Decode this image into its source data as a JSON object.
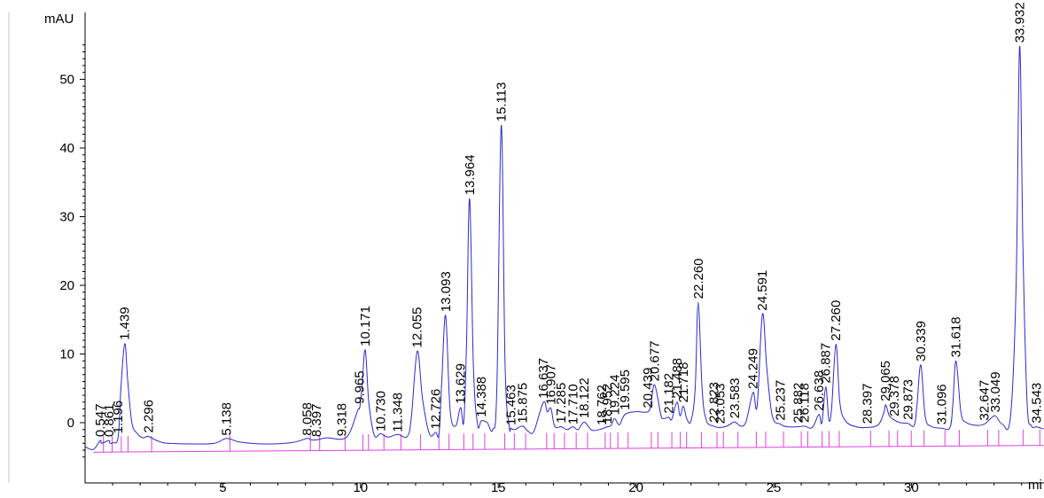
{
  "chart_data": {
    "type": "line",
    "title": "",
    "ylabel": "mAU",
    "xlabel": "mi",
    "xlim": [
      0,
      34.8
    ],
    "ylim": [
      -7.5,
      59
    ],
    "x_ticks": [
      5,
      10,
      15,
      20,
      25,
      30
    ],
    "y_ticks": [
      0,
      10,
      20,
      30,
      40,
      50
    ],
    "grid": false,
    "colors": {
      "trace": "#2a2ad0",
      "baseline": "#e040e0",
      "axis": "#000000"
    },
    "baseline": {
      "x": [
        0.3,
        34.8
      ],
      "y": [
        -4.3,
        -3.3
      ]
    },
    "peaks": [
      {
        "label": "0.547",
        "x": 0.547,
        "y": -2.6
      },
      {
        "label": "0.861",
        "x": 0.861,
        "y": -2.6
      },
      {
        "label": "1.196",
        "x": 1.196,
        "y": -2.1
      },
      {
        "label": "1.439",
        "x": 1.439,
        "y": 11.5
      },
      {
        "label": "2.296",
        "x": 2.296,
        "y": -2.0
      },
      {
        "label": "5.138",
        "x": 5.138,
        "y": -2.4
      },
      {
        "label": "8.058",
        "x": 8.058,
        "y": -2.4
      },
      {
        "label": "8.397",
        "x": 8.397,
        "y": -2.6
      },
      {
        "label": "9.318",
        "x": 9.318,
        "y": -2.5
      },
      {
        "label": "9.965",
        "x": 9.965,
        "y": 2.2
      },
      {
        "label": "10.171",
        "x": 10.171,
        "y": 10.6
      },
      {
        "label": "10.730",
        "x": 10.73,
        "y": -1.8
      },
      {
        "label": "11.348",
        "x": 11.348,
        "y": -1.9
      },
      {
        "label": "12.055",
        "x": 12.055,
        "y": 10.4
      },
      {
        "label": "12.726",
        "x": 12.726,
        "y": -1.5
      },
      {
        "label": "13.093",
        "x": 13.093,
        "y": 15.6
      },
      {
        "label": "13.629",
        "x": 13.629,
        "y": 2.2
      },
      {
        "label": "13.964",
        "x": 13.964,
        "y": 32.6
      },
      {
        "label": "14.388",
        "x": 14.388,
        "y": 0.3
      },
      {
        "label": "15.113",
        "x": 15.113,
        "y": 43.3
      },
      {
        "label": "15.463",
        "x": 15.463,
        "y": -0.9
      },
      {
        "label": "15.875",
        "x": 15.875,
        "y": -0.6
      },
      {
        "label": "16.637",
        "x": 16.637,
        "y": 3.0
      },
      {
        "label": "16.907",
        "x": 16.907,
        "y": 2.1
      },
      {
        "label": "17.285",
        "x": 17.285,
        "y": -0.6
      },
      {
        "label": "17.710",
        "x": 17.71,
        "y": -0.8
      },
      {
        "label": "18.122",
        "x": 18.122,
        "y": 0.1
      },
      {
        "label": "18.762",
        "x": 18.762,
        "y": -0.9
      },
      {
        "label": "18.952",
        "x": 18.952,
        "y": -0.7
      },
      {
        "label": "19.224",
        "x": 19.224,
        "y": 0.6
      },
      {
        "label": "19.595",
        "x": 19.595,
        "y": 1.3
      },
      {
        "label": "20.439",
        "x": 20.439,
        "y": 1.6
      },
      {
        "label": "20.677",
        "x": 20.677,
        "y": 5.5
      },
      {
        "label": "21.182",
        "x": 21.182,
        "y": 0.8
      },
      {
        "label": "21.488",
        "x": 21.488,
        "y": 3.0
      },
      {
        "label": "21.718",
        "x": 21.718,
        "y": 2.4
      },
      {
        "label": "22.260",
        "x": 22.26,
        "y": 17.5
      },
      {
        "label": "22.823",
        "x": 22.823,
        "y": -0.5
      },
      {
        "label": "23.053",
        "x": 23.053,
        "y": -0.7
      },
      {
        "label": "23.583",
        "x": 23.583,
        "y": 0.1
      },
      {
        "label": "24.249",
        "x": 24.249,
        "y": 4.4
      },
      {
        "label": "24.591",
        "x": 24.591,
        "y": 15.8
      },
      {
        "label": "25.237",
        "x": 25.237,
        "y": -0.2
      },
      {
        "label": "25.882",
        "x": 25.882,
        "y": -0.6
      },
      {
        "label": "26.118",
        "x": 26.118,
        "y": -0.5
      },
      {
        "label": "26.638",
        "x": 26.638,
        "y": 1.2
      },
      {
        "label": "26.887",
        "x": 26.887,
        "y": 5.2
      },
      {
        "label": "27.260",
        "x": 27.26,
        "y": 11.4
      },
      {
        "label": "28.397",
        "x": 28.397,
        "y": -0.7
      },
      {
        "label": "29.065",
        "x": 29.065,
        "y": 2.6
      },
      {
        "label": "29.378",
        "x": 29.378,
        "y": 0.4
      },
      {
        "label": "29.873",
        "x": 29.873,
        "y": -0.1
      },
      {
        "label": "30.339",
        "x": 30.339,
        "y": 8.4
      },
      {
        "label": "31.096",
        "x": 31.096,
        "y": -0.8
      },
      {
        "label": "31.618",
        "x": 31.618,
        "y": 9.0
      },
      {
        "label": "32.647",
        "x": 32.647,
        "y": -0.2
      },
      {
        "label": "33.049",
        "x": 33.049,
        "y": 1.0
      },
      {
        "label": "33.932",
        "x": 33.932,
        "y": 54.8
      },
      {
        "label": "34.543",
        "x": 34.543,
        "y": -0.6
      }
    ],
    "trace": {
      "x": [
        0,
        0.3,
        0.55,
        0.6,
        0.86,
        0.9,
        1.0,
        1.2,
        1.3,
        1.44,
        1.55,
        1.7,
        1.9,
        2.1,
        2.3,
        2.6,
        3.0,
        4.0,
        4.7,
        5.14,
        5.6,
        6.5,
        7.5,
        8.06,
        8.2,
        8.4,
        8.8,
        9.32,
        9.6,
        9.9,
        9.97,
        10.05,
        10.17,
        10.3,
        10.5,
        10.73,
        11.0,
        11.35,
        11.7,
        11.85,
        12.06,
        12.25,
        12.5,
        12.73,
        12.85,
        12.95,
        13.09,
        13.25,
        13.45,
        13.63,
        13.75,
        13.85,
        13.96,
        14.1,
        14.25,
        14.39,
        14.6,
        14.8,
        14.95,
        15.11,
        15.25,
        15.4,
        15.46,
        15.6,
        15.88,
        16.1,
        16.3,
        16.64,
        16.78,
        16.91,
        17.05,
        17.29,
        17.5,
        17.71,
        17.9,
        18.12,
        18.4,
        18.76,
        18.95,
        19.1,
        19.22,
        19.4,
        19.6,
        20.0,
        20.44,
        20.55,
        20.68,
        20.9,
        21.0,
        21.18,
        21.3,
        21.49,
        21.6,
        21.72,
        21.85,
        22.0,
        22.15,
        22.26,
        22.4,
        22.55,
        22.82,
        23.05,
        23.3,
        23.58,
        23.8,
        24.0,
        24.25,
        24.4,
        24.59,
        24.75,
        24.95,
        25.24,
        25.5,
        25.88,
        26.12,
        26.4,
        26.64,
        26.75,
        26.89,
        27.0,
        27.1,
        27.26,
        27.4,
        27.6,
        28.0,
        28.4,
        28.8,
        29.0,
        29.07,
        29.2,
        29.38,
        29.6,
        29.87,
        30.1,
        30.2,
        30.34,
        30.5,
        30.7,
        31.1,
        31.4,
        31.5,
        31.62,
        31.8,
        32.0,
        32.4,
        32.65,
        32.85,
        33.05,
        33.3,
        33.6,
        33.8,
        33.93,
        34.05,
        34.2,
        34.35,
        34.54,
        34.7,
        34.8
      ],
      "y": [
        -3.5,
        -3.9,
        -2.6,
        -3.0,
        -2.6,
        -3.0,
        -2.9,
        -2.1,
        5.0,
        11.5,
        6.0,
        0.0,
        -1.6,
        -2.2,
        -2.0,
        -2.6,
        -3.0,
        -3.1,
        -3.0,
        -2.3,
        -2.8,
        -3.1,
        -2.9,
        -2.3,
        -2.5,
        -2.5,
        -2.2,
        -2.4,
        -1.5,
        1.8,
        2.2,
        5.0,
        10.6,
        3.0,
        -1.8,
        -1.6,
        -2.1,
        -1.7,
        -2.0,
        1.0,
        10.4,
        3.5,
        -1.6,
        -1.4,
        -1.6,
        6.0,
        15.6,
        2.0,
        -0.5,
        2.2,
        0.2,
        12.0,
        32.6,
        8.0,
        -0.3,
        0.3,
        0.0,
        -1.0,
        5.0,
        43.3,
        8.0,
        -0.5,
        -0.8,
        -1.0,
        -0.5,
        -1.3,
        -1.2,
        3.0,
        1.6,
        2.1,
        -0.5,
        -0.6,
        -1.0,
        -0.6,
        -1.0,
        0.1,
        -1.1,
        -0.9,
        -0.6,
        -0.4,
        0.6,
        -0.3,
        1.2,
        1.6,
        1.6,
        3.0,
        5.5,
        1.2,
        0.6,
        0.8,
        0.5,
        3.0,
        1.0,
        2.4,
        0.5,
        0.3,
        5.0,
        17.5,
        5.0,
        0.4,
        -0.5,
        -0.7,
        -0.5,
        0.1,
        -0.5,
        0.2,
        4.4,
        2.5,
        15.8,
        8.0,
        1.0,
        -0.2,
        -0.6,
        -0.6,
        -0.5,
        -0.7,
        1.2,
        0.0,
        5.2,
        0.5,
        2.0,
        11.4,
        3.0,
        0.3,
        -0.6,
        -0.7,
        -0.3,
        1.5,
        2.6,
        1.0,
        0.4,
        0.0,
        -0.1,
        -0.4,
        2.5,
        8.4,
        1.0,
        -0.5,
        -0.8,
        -0.7,
        2.5,
        9.0,
        1.5,
        0.0,
        -0.4,
        -0.2,
        0.5,
        1.0,
        -0.2,
        1.0,
        20.0,
        54.8,
        25.0,
        3.0,
        -0.4,
        -0.6,
        -0.8,
        -0.9
      ]
    }
  }
}
